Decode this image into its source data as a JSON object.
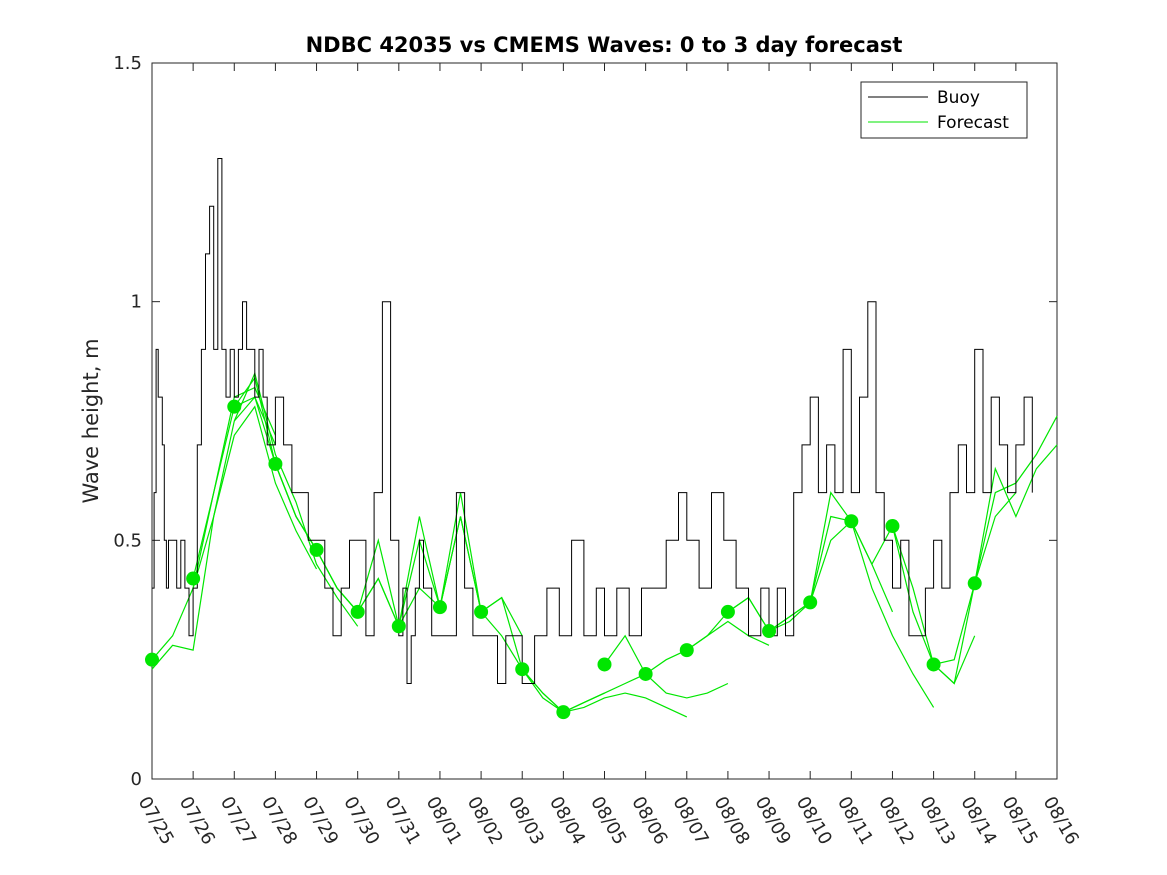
{
  "chart_data": {
    "type": "line",
    "title": "NDBC 42035 vs CMEMS Waves: 0 to 3 day forecast",
    "xlabel": "",
    "ylabel": "Wave height, m",
    "ylim": [
      0,
      1.5
    ],
    "xlim": [
      0,
      22
    ],
    "yticks": [
      0,
      0.5,
      1,
      1.5
    ],
    "ytick_labels": [
      "0",
      "0.5",
      "1",
      "1.5"
    ],
    "xtick_labels": [
      "07/25",
      "07/26",
      "07/27",
      "07/28",
      "07/29",
      "07/30",
      "07/31",
      "08/01",
      "08/02",
      "08/03",
      "08/04",
      "08/05",
      "08/06",
      "08/07",
      "08/08",
      "08/09",
      "08/10",
      "08/11",
      "08/12",
      "08/13",
      "08/14",
      "08/15",
      "08/16"
    ],
    "legend": {
      "position": "top-right",
      "entries": [
        {
          "label": "Buoy",
          "color": "#000000"
        },
        {
          "label": "Forecast",
          "color": "#00e600"
        }
      ]
    },
    "colors": {
      "buoy": "#000000",
      "forecast": "#00e600",
      "dot": "#00e600"
    },
    "buoy": {
      "name": "Buoy",
      "x": [
        0,
        0.05,
        0.1,
        0.15,
        0.2,
        0.25,
        0.3,
        0.35,
        0.4,
        0.5,
        0.6,
        0.7,
        0.8,
        0.9,
        1.0,
        1.1,
        1.2,
        1.3,
        1.4,
        1.5,
        1.6,
        1.7,
        1.8,
        1.9,
        2.0,
        2.1,
        2.2,
        2.3,
        2.4,
        2.5,
        2.6,
        2.7,
        2.8,
        3.0,
        3.2,
        3.4,
        3.6,
        3.8,
        4.0,
        4.2,
        4.4,
        4.6,
        4.8,
        5.0,
        5.2,
        5.4,
        5.6,
        5.8,
        6.0,
        6.1,
        6.2,
        6.3,
        6.4,
        6.5,
        6.6,
        6.8,
        7.0,
        7.2,
        7.4,
        7.6,
        7.8,
        8.0,
        8.2,
        8.4,
        8.6,
        8.8,
        9.0,
        9.3,
        9.6,
        9.9,
        10.2,
        10.5,
        10.8,
        11.0,
        11.3,
        11.6,
        11.9,
        12.2,
        12.5,
        12.8,
        13.0,
        13.3,
        13.6,
        13.9,
        14.2,
        14.5,
        14.8,
        15.0,
        15.2,
        15.4,
        15.6,
        15.8,
        16.0,
        16.2,
        16.4,
        16.6,
        16.8,
        17.0,
        17.2,
        17.4,
        17.6,
        17.8,
        18.0,
        18.2,
        18.4,
        18.6,
        18.8,
        19.0,
        19.2,
        19.4,
        19.6,
        19.8,
        20.0,
        20.2,
        20.4,
        20.6,
        20.8,
        21.0,
        21.2,
        21.4
      ],
      "values": [
        0.4,
        0.6,
        0.9,
        0.8,
        0.8,
        0.7,
        0.5,
        0.4,
        0.5,
        0.5,
        0.4,
        0.5,
        0.4,
        0.3,
        0.4,
        0.7,
        0.9,
        1.1,
        1.2,
        0.9,
        1.3,
        0.9,
        0.8,
        0.9,
        0.8,
        0.9,
        1.0,
        0.9,
        0.9,
        0.8,
        0.9,
        0.8,
        0.7,
        0.8,
        0.7,
        0.6,
        0.6,
        0.5,
        0.5,
        0.4,
        0.3,
        0.4,
        0.5,
        0.5,
        0.3,
        0.6,
        1.0,
        0.5,
        0.3,
        0.4,
        0.2,
        0.3,
        0.4,
        0.5,
        0.4,
        0.3,
        0.3,
        0.3,
        0.6,
        0.4,
        0.3,
        0.3,
        0.3,
        0.2,
        0.3,
        0.3,
        0.2,
        0.3,
        0.4,
        0.3,
        0.5,
        0.3,
        0.4,
        0.3,
        0.4,
        0.3,
        0.4,
        0.4,
        0.5,
        0.6,
        0.5,
        0.4,
        0.6,
        0.5,
        0.4,
        0.3,
        0.4,
        0.3,
        0.4,
        0.3,
        0.6,
        0.7,
        0.8,
        0.6,
        0.7,
        0.6,
        0.9,
        0.6,
        0.8,
        1.0,
        0.6,
        0.5,
        0.4,
        0.5,
        0.3,
        0.3,
        0.4,
        0.5,
        0.4,
        0.6,
        0.7,
        0.6,
        0.9,
        0.6,
        0.8,
        0.7,
        0.6,
        0.7,
        0.8,
        0.6
      ]
    },
    "forecast": {
      "name": "Forecast",
      "series": [
        {
          "x": [
            0,
            0.5,
            1.0,
            1.5,
            2.0,
            2.5,
            3.0
          ],
          "values": [
            0.25,
            0.3,
            0.4,
            0.6,
            0.8,
            0.82,
            0.72
          ]
        },
        {
          "x": [
            0,
            0.5,
            1.0,
            1.5,
            2.0,
            2.5,
            3.0
          ],
          "values": [
            0.23,
            0.28,
            0.27,
            0.55,
            0.75,
            0.8,
            0.7
          ]
        },
        {
          "x": [
            1,
            1.5,
            2.0,
            2.5,
            3.0,
            3.5,
            4.0
          ],
          "values": [
            0.42,
            0.6,
            0.78,
            0.84,
            0.66,
            0.55,
            0.48
          ]
        },
        {
          "x": [
            1,
            1.5,
            2.0,
            2.5,
            3.0,
            3.5,
            4.0
          ],
          "values": [
            0.4,
            0.55,
            0.72,
            0.78,
            0.62,
            0.52,
            0.44
          ]
        },
        {
          "x": [
            2,
            2.5,
            3.0,
            3.5,
            4.0,
            4.5,
            5.0
          ],
          "values": [
            0.78,
            0.8,
            0.66,
            0.55,
            0.48,
            0.4,
            0.35
          ]
        },
        {
          "x": [
            2,
            2.5,
            3.0,
            3.5,
            4.0,
            4.5,
            5.0
          ],
          "values": [
            0.75,
            0.85,
            0.68,
            0.58,
            0.45,
            0.38,
            0.32
          ]
        },
        {
          "x": [
            3,
            3.5,
            4.0,
            4.5,
            5.0,
            5.5,
            6.0
          ],
          "values": [
            0.66,
            0.55,
            0.48,
            0.4,
            0.35,
            0.42,
            0.32
          ]
        },
        {
          "x": [
            4,
            4.5,
            5.0,
            5.5,
            6.0,
            6.5,
            7.0
          ],
          "values": [
            0.48,
            0.4,
            0.35,
            0.5,
            0.32,
            0.5,
            0.36
          ]
        },
        {
          "x": [
            5,
            5.5,
            6.0,
            6.5,
            7.0,
            7.5,
            8.0
          ],
          "values": [
            0.35,
            0.42,
            0.32,
            0.55,
            0.36,
            0.55,
            0.35
          ]
        },
        {
          "x": [
            6,
            6.5,
            7.0,
            7.5,
            8.0,
            8.5,
            9.0
          ],
          "values": [
            0.32,
            0.4,
            0.36,
            0.6,
            0.35,
            0.38,
            0.3
          ]
        },
        {
          "x": [
            7,
            7.5,
            8.0,
            8.5,
            9.0,
            9.5,
            10.0
          ],
          "values": [
            0.36,
            0.55,
            0.35,
            0.3,
            0.23,
            0.18,
            0.14
          ]
        },
        {
          "x": [
            8,
            8.5,
            9.0,
            9.5,
            10.0,
            10.5,
            11.0
          ],
          "values": [
            0.35,
            0.38,
            0.23,
            0.17,
            0.14,
            0.16,
            0.18
          ]
        },
        {
          "x": [
            9,
            9.5,
            10.0,
            10.5,
            11.0,
            11.5,
            12.0
          ],
          "values": [
            0.23,
            0.18,
            0.14,
            0.16,
            0.18,
            0.2,
            0.22
          ]
        },
        {
          "x": [
            10,
            10.5,
            11.0,
            11.5,
            12.0,
            12.5,
            13.0
          ],
          "values": [
            0.14,
            0.15,
            0.17,
            0.18,
            0.17,
            0.15,
            0.13
          ]
        },
        {
          "x": [
            11,
            11.5,
            12.0,
            12.5,
            13.0,
            13.5,
            14.0
          ],
          "values": [
            0.24,
            0.3,
            0.22,
            0.18,
            0.17,
            0.18,
            0.2
          ]
        },
        {
          "x": [
            12,
            12.5,
            13.0,
            13.5,
            14.0,
            14.5,
            15.0
          ],
          "values": [
            0.22,
            0.25,
            0.27,
            0.3,
            0.33,
            0.3,
            0.28
          ]
        },
        {
          "x": [
            13,
            13.5,
            14.0,
            14.5,
            15.0,
            15.5,
            16.0
          ],
          "values": [
            0.27,
            0.3,
            0.35,
            0.38,
            0.31,
            0.33,
            0.37
          ]
        },
        {
          "x": [
            14,
            14.5,
            15.0,
            15.5,
            16.0,
            16.5,
            17.0
          ],
          "values": [
            0.35,
            0.38,
            0.31,
            0.34,
            0.37,
            0.55,
            0.54
          ]
        },
        {
          "x": [
            15,
            15.5,
            16.0,
            16.5,
            17.0,
            17.5,
            18.0
          ],
          "values": [
            0.31,
            0.34,
            0.37,
            0.6,
            0.54,
            0.45,
            0.35
          ]
        },
        {
          "x": [
            16,
            16.5,
            17.0,
            17.5,
            18.0,
            18.5,
            19.0
          ],
          "values": [
            0.37,
            0.5,
            0.54,
            0.4,
            0.3,
            0.22,
            0.15
          ]
        },
        {
          "x": [
            17,
            17.5,
            18.0,
            18.5,
            19.0,
            19.5,
            20.0
          ],
          "values": [
            0.54,
            0.45,
            0.53,
            0.35,
            0.24,
            0.2,
            0.3
          ]
        },
        {
          "x": [
            18,
            18.5,
            19.0,
            19.5,
            20.0,
            20.5,
            21.0
          ],
          "values": [
            0.53,
            0.4,
            0.24,
            0.25,
            0.41,
            0.55,
            0.6
          ]
        },
        {
          "x": [
            19,
            19.5,
            20.0,
            20.5,
            21.0,
            21.5,
            22.0
          ],
          "values": [
            0.24,
            0.2,
            0.41,
            0.6,
            0.62,
            0.68,
            0.76
          ]
        },
        {
          "x": [
            20,
            20.5,
            21.0,
            21.5,
            22.0
          ],
          "values": [
            0.41,
            0.65,
            0.55,
            0.65,
            0.7
          ]
        }
      ]
    },
    "markers": {
      "x": [
        0,
        1,
        2,
        3,
        4,
        5,
        6,
        7,
        8,
        9,
        10,
        11,
        12,
        13,
        14,
        15,
        16,
        17,
        18,
        19,
        20
      ],
      "values": [
        0.25,
        0.42,
        0.78,
        0.66,
        0.48,
        0.35,
        0.32,
        0.36,
        0.35,
        0.23,
        0.14,
        0.24,
        0.22,
        0.27,
        0.35,
        0.31,
        0.37,
        0.54,
        0.53,
        0.24,
        0.41
      ]
    }
  }
}
